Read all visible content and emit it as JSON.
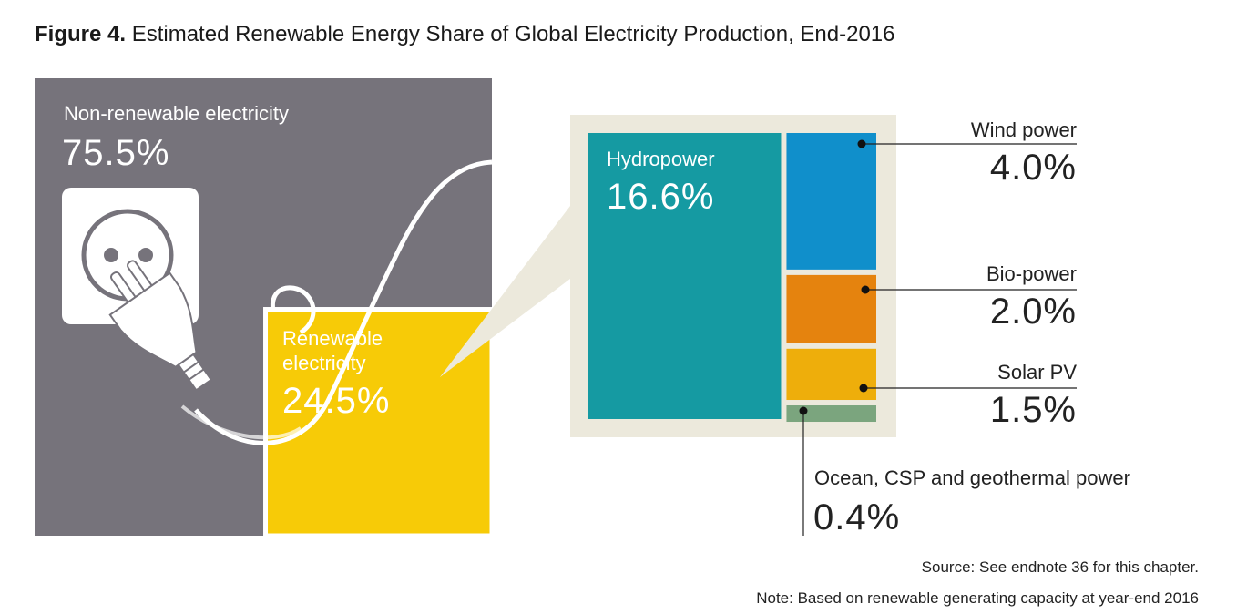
{
  "figure": {
    "label": "Figure 4.",
    "title": "Estimated Renewable Energy Share of Global Electricity Production, End-2016"
  },
  "chart_data": {
    "type": "treemap",
    "title": "Estimated Renewable Energy Share of Global Electricity Production, End-2016",
    "unit": "%",
    "categories": [
      "Non-renewable electricity",
      "Renewable electricity"
    ],
    "values": [
      75.5,
      24.5
    ],
    "labels": [
      "75.5%",
      "24.5%"
    ],
    "renewable_breakdown": {
      "categories": [
        "Hydropower",
        "Wind power",
        "Bio-power",
        "Solar PV",
        "Ocean, CSP and geothermal power"
      ],
      "values": [
        16.6,
        4.0,
        2.0,
        1.5,
        0.4
      ],
      "labels": [
        "16.6%",
        "4.0%",
        "2.0%",
        "1.5%",
        "0.4%"
      ]
    }
  },
  "labels": {
    "nonrenewable_name": "Non-renewable electricity",
    "renewable_name": "Renewable electricity",
    "hydro_name": "Hydropower",
    "wind_name": "Wind power",
    "bio_name": "Bio-power",
    "solar_name": "Solar PV",
    "ocean_name": "Ocean, CSP and geothermal power"
  },
  "colors": {
    "nonrenewable": "#76737b",
    "renewable": "#f7cb07",
    "frame": "#ece9dc",
    "hydro": "#159aa2",
    "wind": "#108fcb",
    "bio": "#e5830e",
    "solar": "#eeae0b",
    "ocean": "#7ba57e"
  },
  "footer": {
    "source": "Source: See endnote 36 for this chapter.",
    "note": "Note: Based on renewable generating capacity at year-end 2016"
  }
}
